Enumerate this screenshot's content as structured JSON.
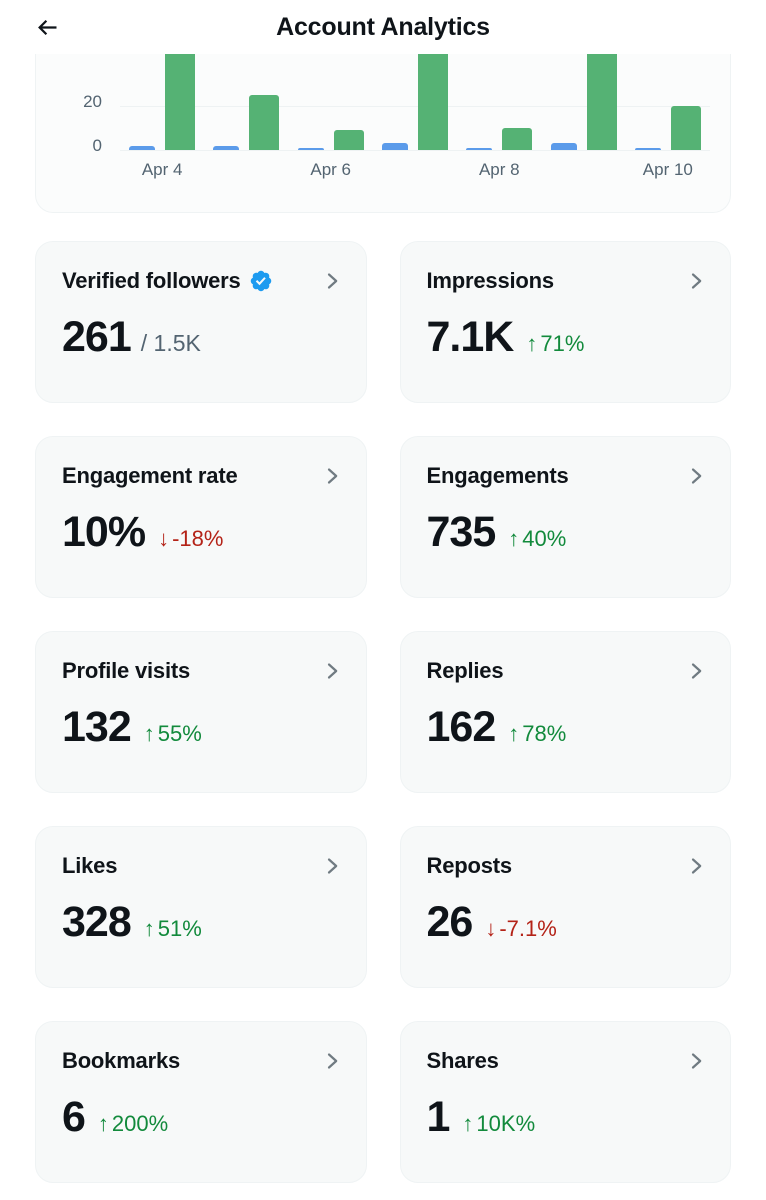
{
  "header": {
    "title": "Account Analytics"
  },
  "chart_data": {
    "type": "bar",
    "title": "Account activity (top of chart clipped by scroll)",
    "x": [
      "Apr 4",
      "Apr 5",
      "Apr 6",
      "Apr 7",
      "Apr 8",
      "Apr 9",
      "Apr 10"
    ],
    "xticks_shown": [
      "Apr 4",
      "Apr 6",
      "Apr 8",
      "Apr 10"
    ],
    "yticks": [
      0,
      20
    ],
    "ylim": [
      0,
      43
    ],
    "grid": true,
    "legend": "none",
    "series": [
      {
        "name": "series-blue",
        "color": "#5b9bea",
        "values": [
          2,
          2,
          1,
          3,
          1,
          3,
          1
        ]
      },
      {
        "name": "series-green",
        "color": "#55b274",
        "values": [
          60,
          25,
          9,
          65,
          10,
          62,
          20
        ]
      }
    ]
  },
  "colors": {
    "positive": "#128a3c",
    "negative": "#b42318",
    "accent_blue": "#1d9bf0",
    "card_bg": "#f7f9f9",
    "muted_text": "#536471"
  },
  "cards": [
    {
      "label": "Verified followers",
      "verified_badge": true,
      "value": "261",
      "suffix": "/ 1.5K",
      "change": null
    },
    {
      "label": "Impressions",
      "value": "7.1K",
      "change": {
        "dir": "up",
        "text": "71%"
      }
    },
    {
      "label": "Engagement rate",
      "value": "10%",
      "change": {
        "dir": "down",
        "text": "-18%"
      }
    },
    {
      "label": "Engagements",
      "value": "735",
      "change": {
        "dir": "up",
        "text": "40%"
      }
    },
    {
      "label": "Profile visits",
      "value": "132",
      "change": {
        "dir": "up",
        "text": "55%"
      }
    },
    {
      "label": "Replies",
      "value": "162",
      "change": {
        "dir": "up",
        "text": "78%"
      }
    },
    {
      "label": "Likes",
      "value": "328",
      "change": {
        "dir": "up",
        "text": "51%"
      }
    },
    {
      "label": "Reposts",
      "value": "26",
      "change": {
        "dir": "down",
        "text": "-7.1%"
      }
    },
    {
      "label": "Bookmarks",
      "value": "6",
      "change": {
        "dir": "up",
        "text": "200%"
      }
    },
    {
      "label": "Shares",
      "value": "1",
      "change": {
        "dir": "up",
        "text": "10K%"
      }
    }
  ]
}
